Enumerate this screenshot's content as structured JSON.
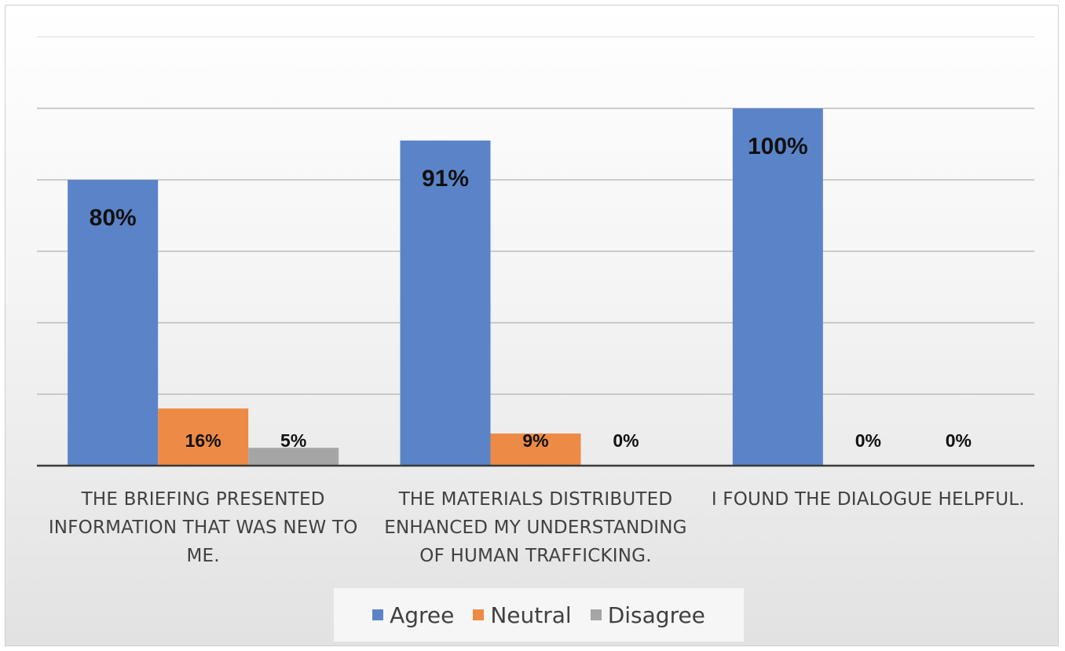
{
  "chart_data": {
    "type": "bar",
    "categories": [
      "THE BRIEFING PRESENTED INFORMATION THAT WAS NEW TO ME.",
      "THE MATERIALS DISTRIBUTED ENHANCED MY UNDERSTANDING OF HUMAN TRAFFICKING.",
      "I FOUND THE DIALOGUE HELPFUL."
    ],
    "category_lines": [
      [
        "THE BRIEFING PRESENTED",
        "INFORMATION THAT WAS NEW TO",
        "ME."
      ],
      [
        "THE MATERIALS DISTRIBUTED",
        "ENHANCED MY UNDERSTANDING",
        "OF HUMAN TRAFFICKING."
      ],
      [
        "I FOUND THE DIALOGUE HELPFUL."
      ]
    ],
    "series": [
      {
        "name": "Agree",
        "color": "#5b84c8",
        "values": [
          80,
          91,
          100
        ],
        "labels": [
          "80%",
          "91%",
          "100%"
        ]
      },
      {
        "name": "Neutral",
        "color": "#ed8a45",
        "values": [
          16,
          9,
          0
        ],
        "labels": [
          "16%",
          "9%",
          "0%"
        ]
      },
      {
        "name": "Disagree",
        "color": "#a5a5a5",
        "values": [
          5,
          0,
          0
        ],
        "labels": [
          "5%",
          "0%",
          "0%"
        ]
      }
    ],
    "ylim": [
      0,
      120
    ],
    "grid": true,
    "legend_position": "bottom",
    "title": "",
    "xlabel": "",
    "ylabel": ""
  }
}
